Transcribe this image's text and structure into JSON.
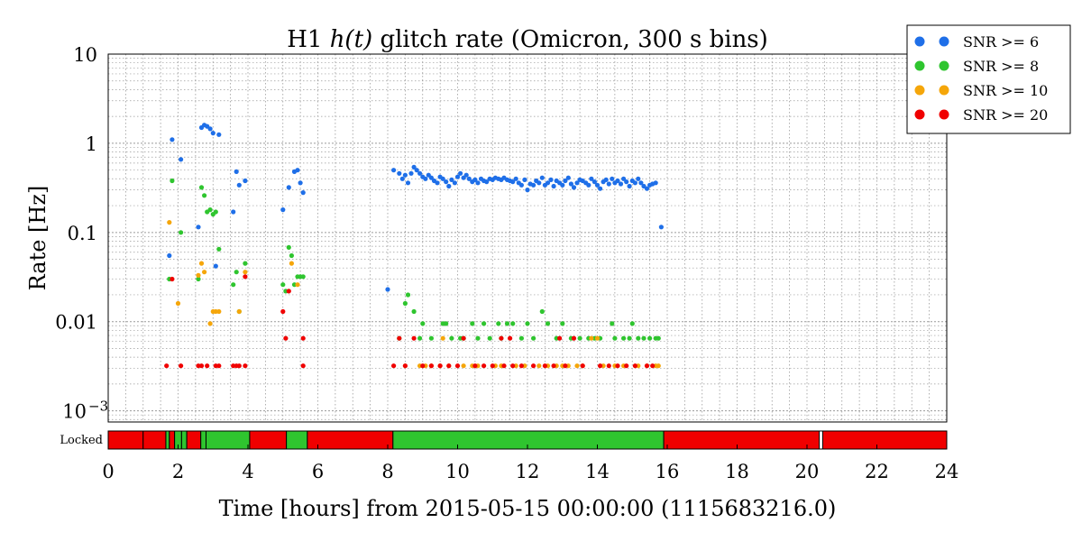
{
  "chart_data": {
    "type": "scatter",
    "title_prefix": "H1",
    "title_math": "h(t)",
    "title_suffix": "glitch rate (Omicron, 300 s bins)",
    "xlabel": "Time [hours] from 2015-05-15 00:00:00 (1115683216.0)",
    "ylabel": "Rate [Hz]",
    "x_scale": "linear",
    "y_scale": "log",
    "xlim": [
      0,
      24
    ],
    "ylim": [
      0.00075,
      10
    ],
    "x_ticks": [
      0,
      2,
      4,
      6,
      8,
      10,
      12,
      14,
      16,
      18,
      20,
      22,
      24
    ],
    "y_ticks": [
      {
        "value": 10,
        "label": "10"
      },
      {
        "value": 1,
        "label": "1"
      },
      {
        "value": 0.1,
        "label": "0.1"
      },
      {
        "value": 0.01,
        "label": "0.01"
      },
      {
        "value": 0.001,
        "label": "10",
        "exponent": "−3"
      }
    ],
    "grid": true,
    "legend_position": "outside-top-right",
    "series": [
      {
        "name": "SNR >= 6",
        "color": "#1f6fe8",
        "points": [
          [
            1.75,
            0.055
          ],
          [
            1.83,
            1.1
          ],
          [
            2.08,
            0.66
          ],
          [
            2.58,
            0.115
          ],
          [
            2.67,
            1.5
          ],
          [
            2.75,
            1.6
          ],
          [
            2.83,
            1.55
          ],
          [
            2.92,
            1.45
          ],
          [
            3.0,
            1.3
          ],
          [
            3.08,
            0.042
          ],
          [
            3.17,
            1.25
          ],
          [
            3.58,
            0.17
          ],
          [
            3.67,
            0.48
          ],
          [
            3.75,
            0.34
          ],
          [
            3.92,
            0.38
          ],
          [
            5.0,
            0.18
          ],
          [
            5.17,
            0.32
          ],
          [
            5.33,
            0.48
          ],
          [
            5.42,
            0.5
          ],
          [
            5.5,
            0.36
          ],
          [
            5.58,
            0.28
          ],
          [
            8.0,
            0.023
          ],
          [
            8.17,
            0.5
          ],
          [
            8.33,
            0.46
          ],
          [
            8.42,
            0.4
          ],
          [
            8.5,
            0.44
          ],
          [
            8.58,
            0.36
          ],
          [
            8.67,
            0.46
          ],
          [
            8.75,
            0.54
          ],
          [
            8.83,
            0.5
          ],
          [
            8.92,
            0.46
          ],
          [
            9.0,
            0.42
          ],
          [
            9.08,
            0.4
          ],
          [
            9.17,
            0.44
          ],
          [
            9.25,
            0.41
          ],
          [
            9.33,
            0.38
          ],
          [
            9.42,
            0.36
          ],
          [
            9.5,
            0.42
          ],
          [
            9.58,
            0.4
          ],
          [
            9.67,
            0.37
          ],
          [
            9.75,
            0.33
          ],
          [
            9.83,
            0.39
          ],
          [
            9.92,
            0.36
          ],
          [
            10.0,
            0.42
          ],
          [
            10.08,
            0.46
          ],
          [
            10.17,
            0.41
          ],
          [
            10.25,
            0.44
          ],
          [
            10.33,
            0.4
          ],
          [
            10.42,
            0.37
          ],
          [
            10.5,
            0.39
          ],
          [
            10.58,
            0.36
          ],
          [
            10.67,
            0.4
          ],
          [
            10.75,
            0.38
          ],
          [
            10.83,
            0.37
          ],
          [
            10.92,
            0.4
          ],
          [
            11.0,
            0.39
          ],
          [
            11.08,
            0.41
          ],
          [
            11.17,
            0.4
          ],
          [
            11.25,
            0.39
          ],
          [
            11.33,
            0.41
          ],
          [
            11.42,
            0.39
          ],
          [
            11.5,
            0.38
          ],
          [
            11.58,
            0.37
          ],
          [
            11.67,
            0.4
          ],
          [
            11.75,
            0.36
          ],
          [
            11.83,
            0.34
          ],
          [
            11.92,
            0.39
          ],
          [
            12.0,
            0.3
          ],
          [
            12.08,
            0.35
          ],
          [
            12.17,
            0.34
          ],
          [
            12.25,
            0.38
          ],
          [
            12.33,
            0.36
          ],
          [
            12.42,
            0.41
          ],
          [
            12.5,
            0.34
          ],
          [
            12.58,
            0.36
          ],
          [
            12.67,
            0.39
          ],
          [
            12.75,
            0.33
          ],
          [
            12.83,
            0.38
          ],
          [
            12.92,
            0.36
          ],
          [
            13.0,
            0.34
          ],
          [
            13.08,
            0.38
          ],
          [
            13.17,
            0.41
          ],
          [
            13.25,
            0.35
          ],
          [
            13.33,
            0.32
          ],
          [
            13.42,
            0.36
          ],
          [
            13.5,
            0.39
          ],
          [
            13.58,
            0.38
          ],
          [
            13.67,
            0.36
          ],
          [
            13.75,
            0.34
          ],
          [
            13.83,
            0.4
          ],
          [
            13.92,
            0.37
          ],
          [
            14.0,
            0.34
          ],
          [
            14.08,
            0.31
          ],
          [
            14.17,
            0.37
          ],
          [
            14.25,
            0.39
          ],
          [
            14.33,
            0.35
          ],
          [
            14.42,
            0.4
          ],
          [
            14.5,
            0.36
          ],
          [
            14.58,
            0.38
          ],
          [
            14.67,
            0.35
          ],
          [
            14.75,
            0.4
          ],
          [
            14.83,
            0.37
          ],
          [
            14.92,
            0.33
          ],
          [
            15.0,
            0.38
          ],
          [
            15.08,
            0.36
          ],
          [
            15.17,
            0.4
          ],
          [
            15.25,
            0.36
          ],
          [
            15.33,
            0.33
          ],
          [
            15.42,
            0.31
          ],
          [
            15.5,
            0.34
          ],
          [
            15.58,
            0.35
          ],
          [
            15.67,
            0.36
          ],
          [
            15.83,
            0.115
          ]
        ]
      },
      {
        "name": "SNR >= 8",
        "color": "#2fc52f",
        "points": [
          [
            1.75,
            0.03
          ],
          [
            1.83,
            0.38
          ],
          [
            2.08,
            0.1
          ],
          [
            2.58,
            0.03
          ],
          [
            2.67,
            0.32
          ],
          [
            2.75,
            0.26
          ],
          [
            2.83,
            0.17
          ],
          [
            2.92,
            0.18
          ],
          [
            3.0,
            0.16
          ],
          [
            3.08,
            0.17
          ],
          [
            3.17,
            0.065
          ],
          [
            3.58,
            0.026
          ],
          [
            3.67,
            0.036
          ],
          [
            3.75,
            0.013
          ],
          [
            3.92,
            0.045
          ],
          [
            5.0,
            0.026
          ],
          [
            5.08,
            0.022
          ],
          [
            5.17,
            0.068
          ],
          [
            5.25,
            0.055
          ],
          [
            5.33,
            0.026
          ],
          [
            5.42,
            0.032
          ],
          [
            5.5,
            0.032
          ],
          [
            5.58,
            0.032
          ],
          [
            8.33,
            0.0065
          ],
          [
            8.5,
            0.016
          ],
          [
            8.58,
            0.02
          ],
          [
            8.75,
            0.013
          ],
          [
            8.92,
            0.0065
          ],
          [
            9.0,
            0.0095
          ],
          [
            9.25,
            0.0065
          ],
          [
            9.58,
            0.0095
          ],
          [
            9.67,
            0.0095
          ],
          [
            9.83,
            0.0065
          ],
          [
            10.08,
            0.0065
          ],
          [
            10.17,
            0.0065
          ],
          [
            10.42,
            0.0095
          ],
          [
            10.58,
            0.0065
          ],
          [
            10.75,
            0.0095
          ],
          [
            10.92,
            0.0065
          ],
          [
            11.17,
            0.0095
          ],
          [
            11.25,
            0.0065
          ],
          [
            11.42,
            0.0095
          ],
          [
            11.58,
            0.0095
          ],
          [
            11.83,
            0.0065
          ],
          [
            12.0,
            0.0095
          ],
          [
            12.17,
            0.0065
          ],
          [
            12.42,
            0.013
          ],
          [
            12.58,
            0.0095
          ],
          [
            12.83,
            0.0065
          ],
          [
            13.0,
            0.0095
          ],
          [
            13.25,
            0.0065
          ],
          [
            13.5,
            0.0065
          ],
          [
            13.75,
            0.0065
          ],
          [
            13.92,
            0.0065
          ],
          [
            14.08,
            0.0065
          ],
          [
            14.42,
            0.0095
          ],
          [
            14.5,
            0.0065
          ],
          [
            14.75,
            0.0065
          ],
          [
            14.92,
            0.0065
          ],
          [
            15.0,
            0.0095
          ],
          [
            15.17,
            0.0065
          ],
          [
            15.33,
            0.0065
          ],
          [
            15.5,
            0.0065
          ],
          [
            15.67,
            0.0065
          ],
          [
            15.75,
            0.0065
          ]
        ]
      },
      {
        "name": "SNR >= 10",
        "color": "#f5a60a",
        "points": [
          [
            1.75,
            0.13
          ],
          [
            2.0,
            0.016
          ],
          [
            2.58,
            0.033
          ],
          [
            2.67,
            0.045
          ],
          [
            2.75,
            0.036
          ],
          [
            2.92,
            0.0095
          ],
          [
            3.0,
            0.013
          ],
          [
            3.08,
            0.013
          ],
          [
            3.17,
            0.013
          ],
          [
            3.75,
            0.013
          ],
          [
            3.92,
            0.036
          ],
          [
            5.25,
            0.045
          ],
          [
            5.42,
            0.026
          ],
          [
            8.5,
            0.0032
          ],
          [
            8.92,
            0.0032
          ],
          [
            9.08,
            0.0032
          ],
          [
            9.25,
            0.0032
          ],
          [
            9.5,
            0.0032
          ],
          [
            9.58,
            0.0065
          ],
          [
            9.75,
            0.0032
          ],
          [
            10.17,
            0.0032
          ],
          [
            10.42,
            0.0032
          ],
          [
            10.58,
            0.0032
          ],
          [
            11.08,
            0.0032
          ],
          [
            11.25,
            0.0032
          ],
          [
            11.67,
            0.0032
          ],
          [
            11.92,
            0.0032
          ],
          [
            12.33,
            0.0032
          ],
          [
            12.58,
            0.0032
          ],
          [
            12.83,
            0.0032
          ],
          [
            13.0,
            0.0032
          ],
          [
            13.17,
            0.0032
          ],
          [
            13.42,
            0.0032
          ],
          [
            13.58,
            0.0032
          ],
          [
            13.83,
            0.0065
          ],
          [
            14.0,
            0.0065
          ],
          [
            14.17,
            0.0032
          ],
          [
            14.5,
            0.0032
          ],
          [
            14.75,
            0.0032
          ],
          [
            15.17,
            0.0032
          ],
          [
            15.42,
            0.0032
          ],
          [
            15.67,
            0.0032
          ],
          [
            15.75,
            0.0032
          ]
        ]
      },
      {
        "name": "SNR >= 20",
        "color": "#f00000",
        "points": [
          [
            1.67,
            0.0032
          ],
          [
            1.83,
            0.03
          ],
          [
            2.08,
            0.0032
          ],
          [
            2.58,
            0.0032
          ],
          [
            2.67,
            0.0032
          ],
          [
            2.83,
            0.0032
          ],
          [
            3.08,
            0.0032
          ],
          [
            3.17,
            0.0032
          ],
          [
            3.58,
            0.0032
          ],
          [
            3.67,
            0.0032
          ],
          [
            3.75,
            0.0032
          ],
          [
            3.92,
            0.032
          ],
          [
            3.92,
            0.0032
          ],
          [
            5.0,
            0.013
          ],
          [
            5.08,
            0.0065
          ],
          [
            5.17,
            0.022
          ],
          [
            5.58,
            0.0065
          ],
          [
            5.58,
            0.0032
          ],
          [
            8.17,
            0.0032
          ],
          [
            8.33,
            0.0065
          ],
          [
            8.5,
            0.0032
          ],
          [
            8.75,
            0.0065
          ],
          [
            9.0,
            0.0032
          ],
          [
            9.25,
            0.0032
          ],
          [
            9.5,
            0.0032
          ],
          [
            9.75,
            0.0032
          ],
          [
            10.0,
            0.0032
          ],
          [
            10.17,
            0.0065
          ],
          [
            10.5,
            0.0032
          ],
          [
            10.75,
            0.0032
          ],
          [
            11.0,
            0.0032
          ],
          [
            11.25,
            0.0065
          ],
          [
            11.33,
            0.0032
          ],
          [
            11.5,
            0.0065
          ],
          [
            11.58,
            0.0032
          ],
          [
            11.83,
            0.0032
          ],
          [
            12.17,
            0.0032
          ],
          [
            12.5,
            0.0032
          ],
          [
            12.75,
            0.0032
          ],
          [
            12.92,
            0.0065
          ],
          [
            13.08,
            0.0032
          ],
          [
            13.33,
            0.0065
          ],
          [
            13.58,
            0.0032
          ],
          [
            14.08,
            0.0032
          ],
          [
            14.33,
            0.0032
          ],
          [
            14.58,
            0.0032
          ],
          [
            14.83,
            0.0032
          ],
          [
            15.08,
            0.0032
          ],
          [
            15.42,
            0.0032
          ],
          [
            15.58,
            0.0032
          ]
        ]
      }
    ],
    "state_bar": {
      "label": "Locked",
      "segments": [
        {
          "start": 0.0,
          "end": 1.0,
          "state": "off"
        },
        {
          "start": 1.0,
          "end": 1.65,
          "state": "off"
        },
        {
          "start": 1.65,
          "end": 1.75,
          "state": "on"
        },
        {
          "start": 1.75,
          "end": 1.9,
          "state": "off"
        },
        {
          "start": 1.9,
          "end": 2.1,
          "state": "on"
        },
        {
          "start": 2.1,
          "end": 2.25,
          "state": "on"
        },
        {
          "start": 2.25,
          "end": 2.65,
          "state": "off"
        },
        {
          "start": 2.65,
          "end": 2.8,
          "state": "on"
        },
        {
          "start": 2.8,
          "end": 4.05,
          "state": "on"
        },
        {
          "start": 4.05,
          "end": 5.1,
          "state": "off"
        },
        {
          "start": 5.1,
          "end": 5.7,
          "state": "on"
        },
        {
          "start": 5.7,
          "end": 8.15,
          "state": "off"
        },
        {
          "start": 8.15,
          "end": 15.9,
          "state": "on"
        },
        {
          "start": 15.9,
          "end": 20.35,
          "state": "off"
        },
        {
          "start": 20.45,
          "end": 24.0,
          "state": "off"
        }
      ],
      "on_color": "#2fc52f",
      "off_color": "#f00000"
    }
  }
}
